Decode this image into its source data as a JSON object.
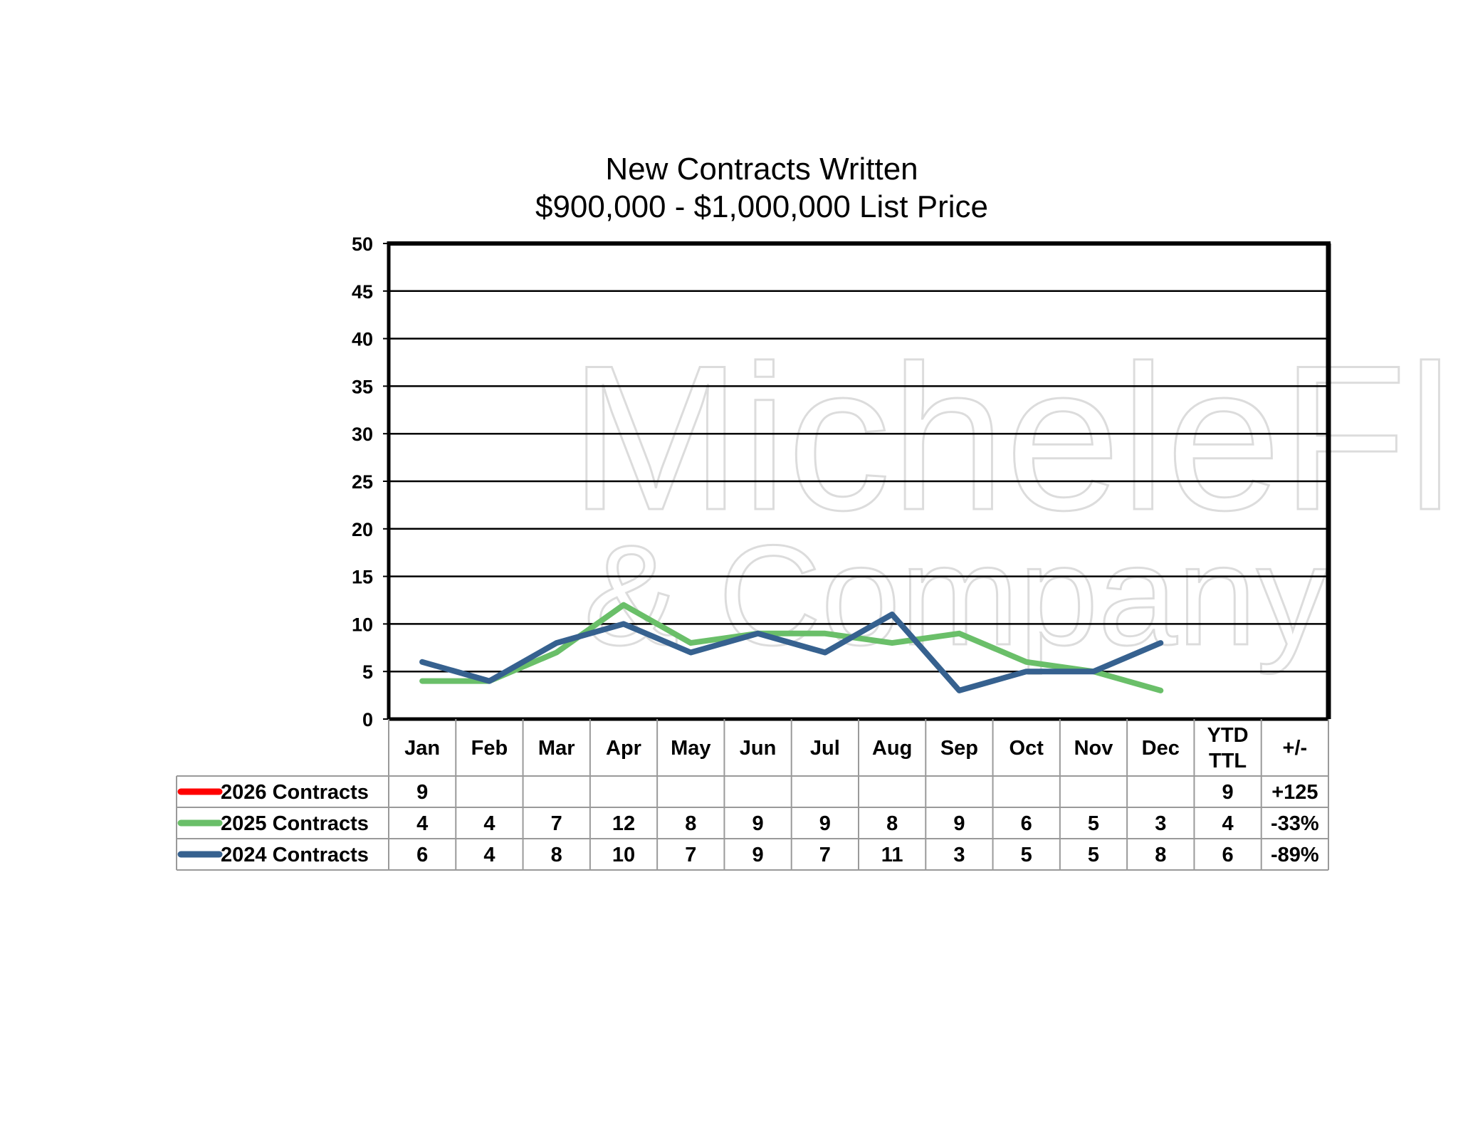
{
  "chart_data": {
    "type": "line",
    "title": "New Contracts Written",
    "subtitle": "$900,000 - $1,000,000 List Price",
    "categories": [
      "Jan",
      "Feb",
      "Mar",
      "Apr",
      "May",
      "Jun",
      "Jul",
      "Aug",
      "Sep",
      "Oct",
      "Nov",
      "Dec"
    ],
    "extra_columns": [
      "YTD\nTTL",
      "+/-"
    ],
    "ylim": [
      0,
      50
    ],
    "yticks": [
      0,
      5,
      10,
      15,
      20,
      25,
      30,
      35,
      40,
      45,
      50
    ],
    "grid": true,
    "legend_placement": "table-left",
    "series": [
      {
        "name": "2026 Contracts",
        "color": "#ff0000",
        "values": [
          9,
          null,
          null,
          null,
          null,
          null,
          null,
          null,
          null,
          null,
          null,
          null
        ],
        "ytd": "9",
        "change": "+125"
      },
      {
        "name": "2025 Contracts",
        "color": "#6abf69",
        "values": [
          4,
          4,
          7,
          12,
          8,
          9,
          9,
          8,
          9,
          6,
          5,
          3
        ],
        "ytd": "4",
        "change": "-33%"
      },
      {
        "name": "2024 Contracts",
        "color": "#36618f",
        "values": [
          6,
          4,
          8,
          10,
          7,
          9,
          7,
          11,
          3,
          5,
          5,
          8
        ],
        "ytd": "6",
        "change": "-89%"
      }
    ]
  },
  "watermark": {
    "line1": "MicheleFlory",
    "line2": "& Company"
  }
}
